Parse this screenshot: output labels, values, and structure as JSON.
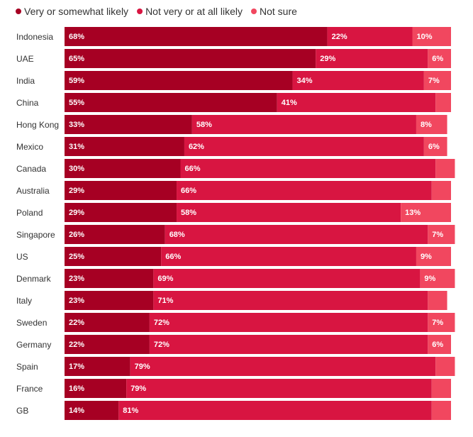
{
  "chart_data": {
    "type": "bar",
    "orientation": "horizontal",
    "stacked": true,
    "legend_position": "top-left",
    "grid": false,
    "xlim": [
      0,
      100
    ],
    "categories": [
      "Indonesia",
      "UAE",
      "India",
      "China",
      "Hong Kong",
      "Mexico",
      "Canada",
      "Australia",
      "Poland",
      "Singapore",
      "US",
      "Denmark",
      "Italy",
      "Sweden",
      "Germany",
      "Spain",
      "France",
      "GB"
    ],
    "series": [
      {
        "name": "Very or somewhat likely",
        "color": "#a60023",
        "values": [
          68,
          65,
          59,
          55,
          33,
          31,
          30,
          29,
          29,
          26,
          25,
          23,
          23,
          22,
          22,
          17,
          16,
          14
        ],
        "labels": [
          "68%",
          "65%",
          "59%",
          "55%",
          "33%",
          "31%",
          "30%",
          "29%",
          "29%",
          "26%",
          "25%",
          "23%",
          "23%",
          "22%",
          "22%",
          "17%",
          "16%",
          "14%"
        ]
      },
      {
        "name": "Not very or at all likely",
        "color": "#d81541",
        "values": [
          22,
          29,
          34,
          41,
          58,
          62,
          66,
          66,
          58,
          68,
          66,
          69,
          71,
          72,
          72,
          79,
          79,
          81
        ],
        "labels": [
          "22%",
          "29%",
          "34%",
          "41%",
          "58%",
          "62%",
          "66%",
          "66%",
          "58%",
          "68%",
          "66%",
          "69%",
          "71%",
          "72%",
          "72%",
          "79%",
          "79%",
          "81%"
        ]
      },
      {
        "name": "Not sure",
        "color": "#f1475f",
        "values": [
          10,
          6,
          7,
          4,
          8,
          6,
          5,
          5,
          13,
          7,
          9,
          9,
          5,
          7,
          6,
          5,
          5,
          5
        ],
        "labels": [
          "10%",
          "6%",
          "7%",
          "",
          "8%",
          "6%",
          "",
          "",
          "13%",
          "7%",
          "9%",
          "9%",
          "",
          "7%",
          "6%",
          "",
          "",
          ""
        ]
      }
    ]
  }
}
